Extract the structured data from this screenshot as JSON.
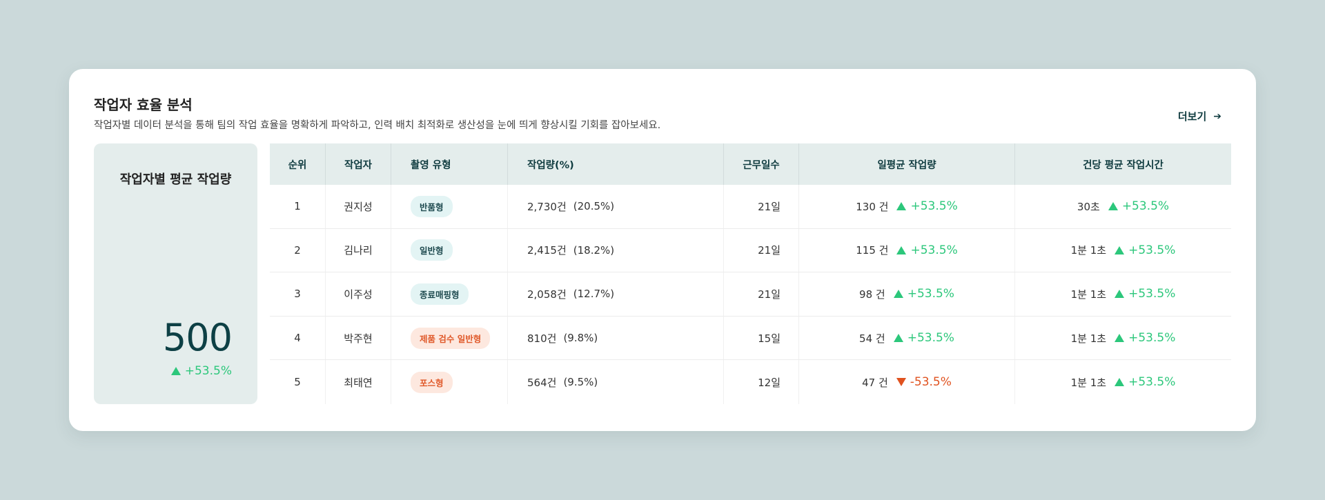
{
  "header": {
    "title": "작업자 효율 분석",
    "subtitle": "작업자별 데이터 분석을 통해 팀의 작업 효율을 명확하게 파악하고, 인력 배치 최적화로 생산성을 눈에 띄게 향상시킬 기회를 잡아보세요.",
    "more_label": "더보기",
    "more_icon": "arrow-right-icon"
  },
  "summary": {
    "title": "작업자별 평균 작업량",
    "value": "500",
    "change": "+53.5%",
    "direction": "up"
  },
  "colors": {
    "accent": "#0d4045",
    "up": "#2cc77b",
    "down": "#e0521f",
    "bg": "#cbd9da"
  },
  "table": {
    "headers": [
      "순위",
      "작업자",
      "촬영 유형",
      "작업량(%)",
      "근무일수",
      "일평균 작업량",
      "건당 평균 작업시간"
    ],
    "rows": [
      {
        "rank": "1",
        "worker": "권지성",
        "type": "반품형",
        "type_color": "teal",
        "amount": "2,730건",
        "pct": "(20.5%)",
        "days": "21일",
        "daily": "130 건",
        "daily_change": "+53.5%",
        "daily_dir": "up",
        "time": "30초",
        "time_change": "+53.5%",
        "time_dir": "up"
      },
      {
        "rank": "2",
        "worker": "김나리",
        "type": "일반형",
        "type_color": "teal",
        "amount": "2,415건",
        "pct": "(18.2%)",
        "days": "21일",
        "daily": "115 건",
        "daily_change": "+53.5%",
        "daily_dir": "up",
        "time": "1분 1초",
        "time_change": "+53.5%",
        "time_dir": "up"
      },
      {
        "rank": "3",
        "worker": "이주성",
        "type": "종료매핑형",
        "type_color": "teal",
        "amount": "2,058건",
        "pct": "(12.7%)",
        "days": "21일",
        "daily": "98 건",
        "daily_change": "+53.5%",
        "daily_dir": "up",
        "time": "1분 1초",
        "time_change": "+53.5%",
        "time_dir": "up"
      },
      {
        "rank": "4",
        "worker": "박주현",
        "type": "제품 검수 일반형",
        "type_color": "orange",
        "amount": "810건",
        "pct": "(9.8%)",
        "days": "15일",
        "daily": "54 건",
        "daily_change": "+53.5%",
        "daily_dir": "up",
        "time": "1분 1초",
        "time_change": "+53.5%",
        "time_dir": "up"
      },
      {
        "rank": "5",
        "worker": "최태연",
        "type": "포스형",
        "type_color": "orange",
        "amount": "564건",
        "pct": "(9.5%)",
        "days": "12일",
        "daily": "47 건",
        "daily_change": "-53.5%",
        "daily_dir": "down",
        "time": "1분 1초",
        "time_change": "+53.5%",
        "time_dir": "up"
      }
    ]
  }
}
